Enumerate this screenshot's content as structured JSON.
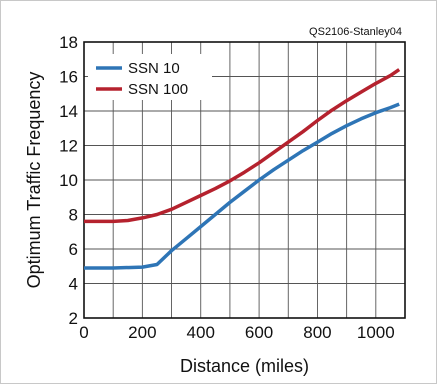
{
  "credit": "QS2106-Stanley04",
  "chart_data": {
    "type": "line",
    "title": "",
    "xlabel": "Distance (miles)",
    "ylabel": "Optimum Traffic Frequency",
    "xlim": [
      0,
      1100
    ],
    "ylim": [
      2,
      18
    ],
    "x_ticks": [
      0,
      200,
      400,
      600,
      800,
      1000
    ],
    "y_ticks": [
      2,
      4,
      6,
      8,
      10,
      12,
      14,
      16,
      18
    ],
    "grid": true,
    "legend_position": "top-left",
    "series": [
      {
        "name": "SSN 10",
        "color": "#2e75b6",
        "points": [
          [
            0,
            4.9
          ],
          [
            100,
            4.9
          ],
          [
            200,
            4.95
          ],
          [
            250,
            5.1
          ],
          [
            300,
            5.9
          ],
          [
            350,
            6.6
          ],
          [
            400,
            7.3
          ],
          [
            450,
            8.0
          ],
          [
            500,
            8.7
          ],
          [
            550,
            9.35
          ],
          [
            600,
            10.0
          ],
          [
            650,
            10.6
          ],
          [
            700,
            11.15
          ],
          [
            750,
            11.7
          ],
          [
            800,
            12.2
          ],
          [
            850,
            12.7
          ],
          [
            900,
            13.15
          ],
          [
            950,
            13.55
          ],
          [
            1000,
            13.9
          ],
          [
            1050,
            14.2
          ],
          [
            1080,
            14.4
          ]
        ]
      },
      {
        "name": "SSN 100",
        "color": "#b5222e",
        "points": [
          [
            0,
            7.6
          ],
          [
            100,
            7.6
          ],
          [
            150,
            7.65
          ],
          [
            200,
            7.8
          ],
          [
            250,
            8.0
          ],
          [
            300,
            8.3
          ],
          [
            350,
            8.7
          ],
          [
            400,
            9.1
          ],
          [
            450,
            9.5
          ],
          [
            500,
            9.95
          ],
          [
            550,
            10.45
          ],
          [
            600,
            11.0
          ],
          [
            650,
            11.6
          ],
          [
            700,
            12.2
          ],
          [
            750,
            12.8
          ],
          [
            800,
            13.45
          ],
          [
            850,
            14.05
          ],
          [
            900,
            14.6
          ],
          [
            950,
            15.1
          ],
          [
            1000,
            15.6
          ],
          [
            1050,
            16.05
          ],
          [
            1080,
            16.4
          ]
        ]
      }
    ]
  }
}
